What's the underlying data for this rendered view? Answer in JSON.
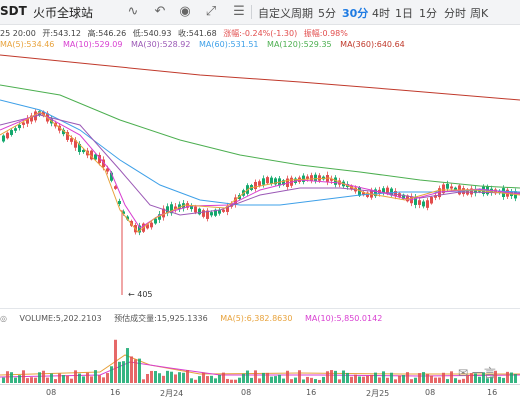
{
  "toolbar": {
    "symbol": "SDT",
    "exchange": "火币全球站",
    "icons": [
      "line-draw-icon",
      "undo-icon",
      "screenshot-icon",
      "fullscreen-icon",
      "list-icon"
    ],
    "custom_period": "自定义周期",
    "periods": [
      "5分",
      "30分",
      "4时",
      "1日",
      "1分",
      "分时",
      "周K"
    ],
    "active_period": "30分"
  },
  "ohlc": {
    "time": "25 20:00",
    "open": "开:543.12",
    "high": "高:546.26",
    "low": "低:540.93",
    "close": "收:541.68",
    "change": "涨幅:-0.24%(-1.30)",
    "amplitude": "振幅:0.98%"
  },
  "ma": [
    {
      "label": "MA(5):534.46",
      "color": "#e8a33d"
    },
    {
      "label": "MA(10):529.09",
      "color": "#d83fd1"
    },
    {
      "label": "MA(30):528.92",
      "color": "#9b59b6"
    },
    {
      "label": "MA(60):531.51",
      "color": "#3ea0e8"
    },
    {
      "label": "MA(120):529.35",
      "color": "#4caf50"
    },
    {
      "label": "MA(360):640.64",
      "color": "#c0392b"
    }
  ],
  "volume": {
    "volume": "VOLUME:5,202.2103",
    "predicted": "预估成交量:15,925.1336",
    "ma5": "MA(5):6,382.8630",
    "ma10": "MA(10):5,850.0142"
  },
  "low_marker": "← 405",
  "xaxis": [
    "08",
    "16",
    "2月24",
    "08",
    "16",
    "2月25",
    "08",
    "16"
  ],
  "watermark": "一言",
  "colors": {
    "up": "#13a86d",
    "down": "#e24d4d",
    "ma5": "#e8a33d",
    "ma10": "#d83fd1",
    "ma30": "#9b59b6",
    "ma60": "#3ea0e8",
    "ma120": "#4caf50",
    "ma360": "#c0392b",
    "accent": "#1e7be3"
  }
}
